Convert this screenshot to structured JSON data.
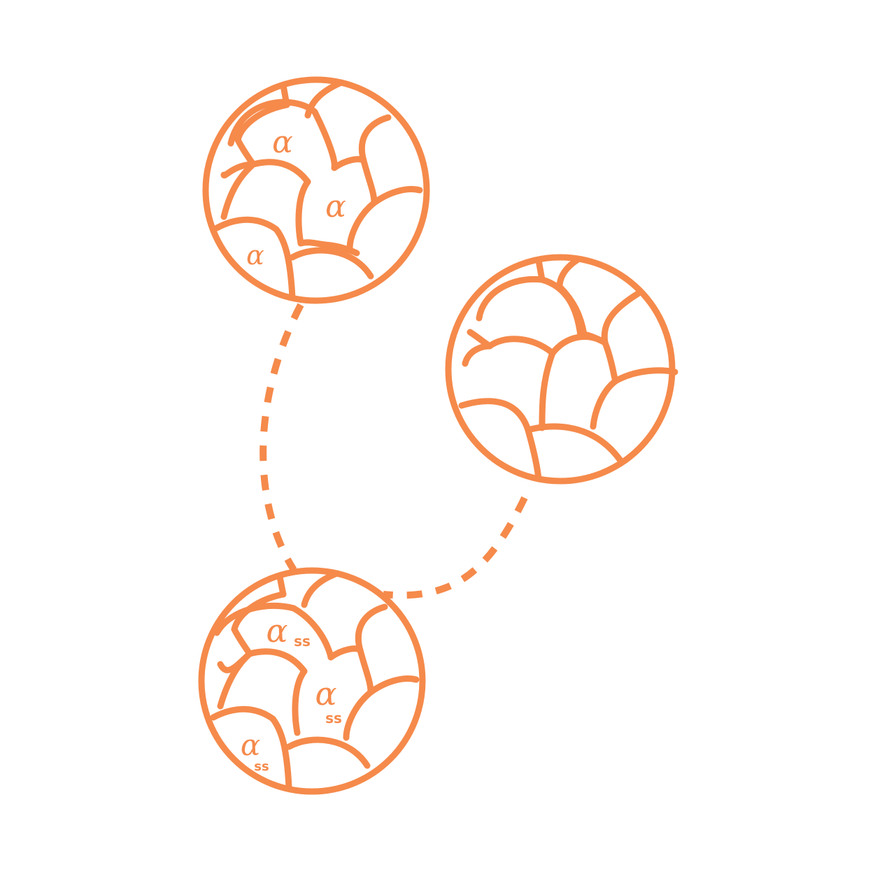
{
  "colors": {
    "stroke": "#f58a4b",
    "background": "#ffffff"
  },
  "labels": {
    "alpha": "α",
    "subscript": "ss"
  }
}
